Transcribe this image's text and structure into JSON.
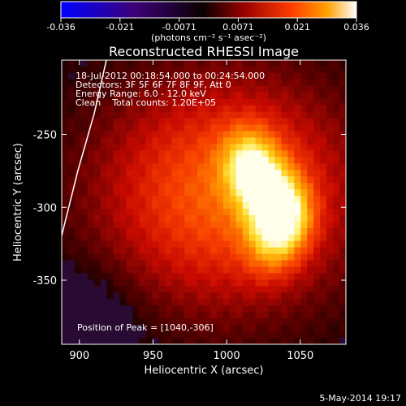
{
  "chart_data": {
    "type": "heatmap",
    "title": "Reconstructed RHESSI Image",
    "xlabel": "Heliocentric X (arcsec)",
    "ylabel": "Heliocentric Y (arcsec)",
    "xlim": [
      888,
      1081
    ],
    "ylim": [
      -394,
      -199
    ],
    "x_ticks": [
      900,
      950,
      1000,
      1050
    ],
    "y_ticks": [
      -250,
      -300,
      -350
    ],
    "colorbar": {
      "ticks": [
        "-0.036",
        "-0.021",
        "-0.0071",
        "0.0071",
        "0.021",
        "0.036"
      ],
      "range": [
        -0.036,
        0.036
      ],
      "unit_label": "(photons cm⁻² s⁻¹ asec⁻²)"
    },
    "annotations": [
      "18-Jul-2012 00:18:54.000 to 00:24:54.000",
      "Detectors: 3F 5F 6F 7F 8F 9F, Att 0",
      "Energy Range: 6.0 - 12.0 keV",
      "Clean    Total counts: 1.20E+05"
    ],
    "peak_label": "Position of Peak = [1040,-306]",
    "peak": [
      1040,
      -306
    ],
    "sources": [
      {
        "x": 1040,
        "y": -306,
        "amp": 1.0
      },
      {
        "x": 1015,
        "y": -270,
        "amp": 0.85
      },
      {
        "x": 1028,
        "y": -290,
        "amp": 0.75
      },
      {
        "x": 1030,
        "y": -325,
        "amp": 0.5
      }
    ],
    "grid": false
  },
  "footer_date": "5-May-2014 19:17"
}
